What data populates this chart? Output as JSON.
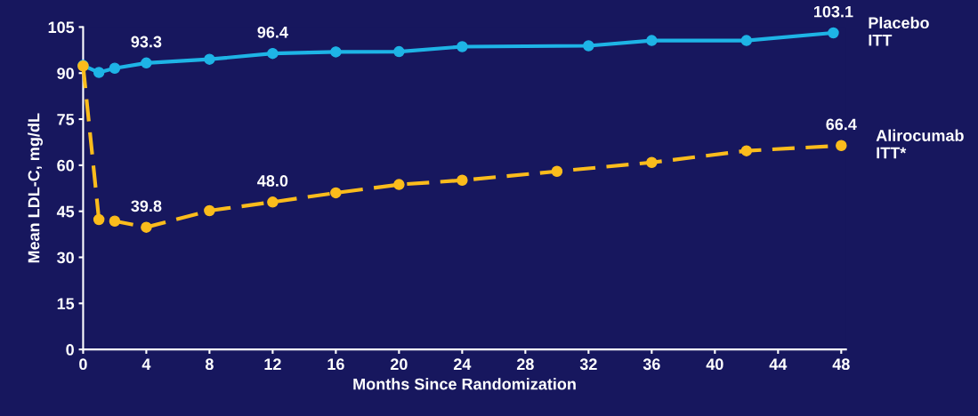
{
  "chart_data": {
    "type": "line",
    "xlabel": "Months Since Randomization",
    "ylabel": "Mean LDL-C, mg/dL",
    "xlim": [
      0,
      48.3
    ],
    "xticks": [
      0,
      4,
      8,
      12,
      16,
      20,
      24,
      28,
      32,
      36,
      40,
      44,
      48
    ],
    "ylim": [
      0,
      105
    ],
    "yticks": [
      0,
      15,
      30,
      45,
      60,
      75,
      90,
      105
    ],
    "grid": false,
    "legend": false,
    "marker": "circle",
    "series": [
      {
        "name": "Placebo\nITT",
        "color": "#1eb4e6",
        "line_style": "solid",
        "x": [
          0,
          1,
          2,
          4,
          8,
          12,
          16,
          20,
          24,
          32,
          36,
          42,
          47.5
        ],
        "values": [
          92.5,
          90.2,
          91.6,
          93.3,
          94.5,
          96.4,
          96.9,
          97.0,
          98.6,
          98.9,
          100.6,
          100.6,
          103.1
        ],
        "value_labels": [
          null,
          null,
          null,
          "93.3",
          null,
          "96.4",
          null,
          null,
          null,
          null,
          null,
          null,
          "103.1"
        ]
      },
      {
        "name": "Alirocumab\nITT*",
        "color": "#fbbc1c",
        "line_style": "dashed",
        "x": [
          0,
          1,
          2,
          4,
          8,
          12,
          16,
          20,
          24,
          30,
          36,
          42,
          48
        ],
        "values": [
          92.3,
          42.3,
          41.8,
          39.8,
          45.2,
          48.0,
          51.0,
          53.7,
          55.1,
          58.0,
          60.9,
          64.7,
          66.4
        ],
        "value_labels": [
          null,
          null,
          null,
          "39.8",
          null,
          "48.0",
          null,
          null,
          null,
          null,
          null,
          null,
          "66.4"
        ]
      }
    ]
  }
}
